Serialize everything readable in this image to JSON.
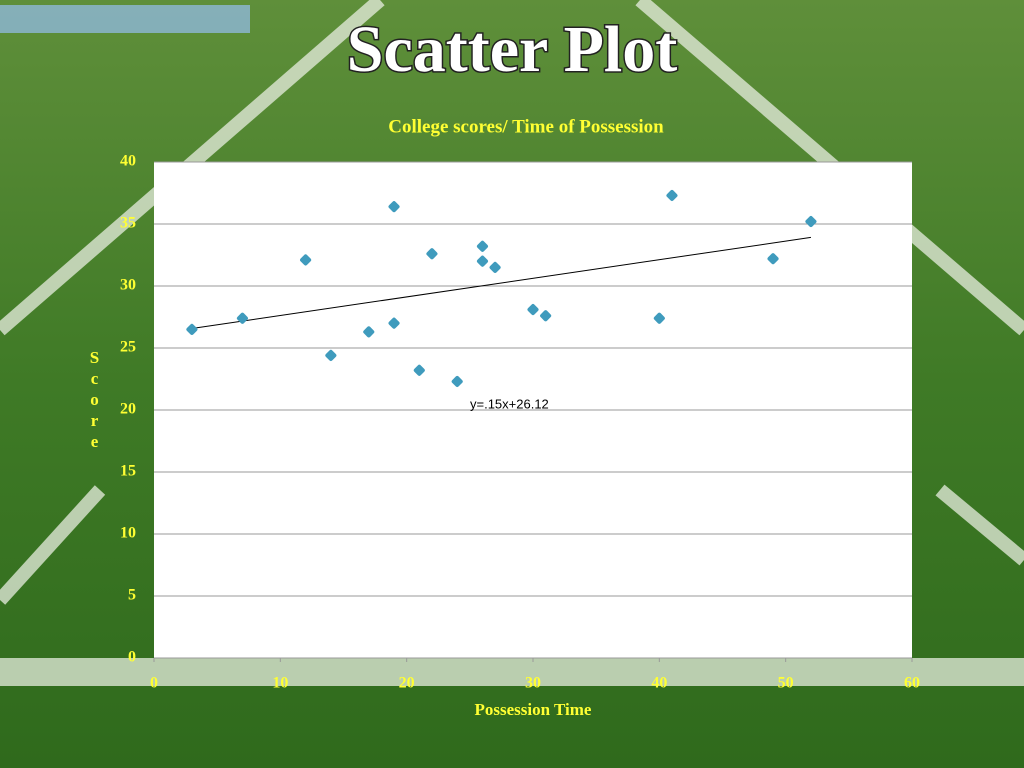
{
  "slide_title": "Scatter Plot",
  "chart_data": {
    "type": "scatter",
    "title": "College scores/ Time of Possession",
    "x_label": "Possession Time",
    "y_label": "Score",
    "x": [
      3,
      7,
      12,
      14,
      17,
      19,
      19,
      21,
      22,
      24,
      26,
      26,
      27,
      30,
      31,
      40,
      41,
      49,
      52
    ],
    "values": [
      26.5,
      27.4,
      32.1,
      24.4,
      26.3,
      36.4,
      27.0,
      23.2,
      32.6,
      22.3,
      33.2,
      32.0,
      31.5,
      28.1,
      27.6,
      27.4,
      37.3,
      32.2,
      35.2
    ],
    "color": "#3f9bbd",
    "xlim": [
      0,
      60
    ],
    "xticks": [
      0,
      10,
      20,
      30,
      40,
      50,
      60
    ],
    "ylim": [
      0,
      40
    ],
    "yticks": [
      0,
      5,
      10,
      15,
      20,
      25,
      30,
      35,
      40
    ],
    "grid": true,
    "trendline": {
      "slope": 0.15,
      "intercept": 26.12,
      "label": "y=.15x+26.12"
    }
  }
}
